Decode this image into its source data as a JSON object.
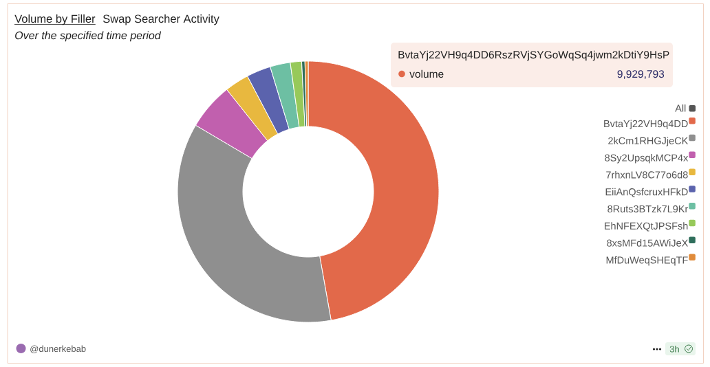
{
  "chart_data": {
    "type": "donut",
    "title": "Volume by Filler",
    "subtitle": "Over the specified time period",
    "categories": [
      "BvtaYj22VH9q4DD",
      "2kCm1RHGJjeCK",
      "8Sy2UpsqkMCP4x",
      "7rhxnLV8C77o6d8",
      "EiiAnQsfcruxHFkD",
      "8Ruts3BTzk7L9Kr",
      "EhNFEXQtJPSFsh",
      "8xsMFd15AWiJeX",
      "MfDuWeqSHEqTF"
    ],
    "values": [
      47.2,
      36.3,
      5.8,
      3.0,
      3.0,
      2.5,
      1.4,
      0.4,
      0.4
    ],
    "colors": [
      "#e2694a",
      "#8f8f8f",
      "#c160ae",
      "#e8b83f",
      "#5b63ad",
      "#6dbfa3",
      "#97c95a",
      "#2f6e5b",
      "#e08b3a"
    ],
    "legend": "right",
    "legend_title": "All",
    "annotations": [
      "Swap Searcher Activity",
      "BvtaYj22VH9q4DD6RszRVjSYGoWqSq4jwm2kDtiY9HsP",
      "volume",
      "9,929,793",
      "@dunerkebab",
      "3h"
    ]
  }
}
